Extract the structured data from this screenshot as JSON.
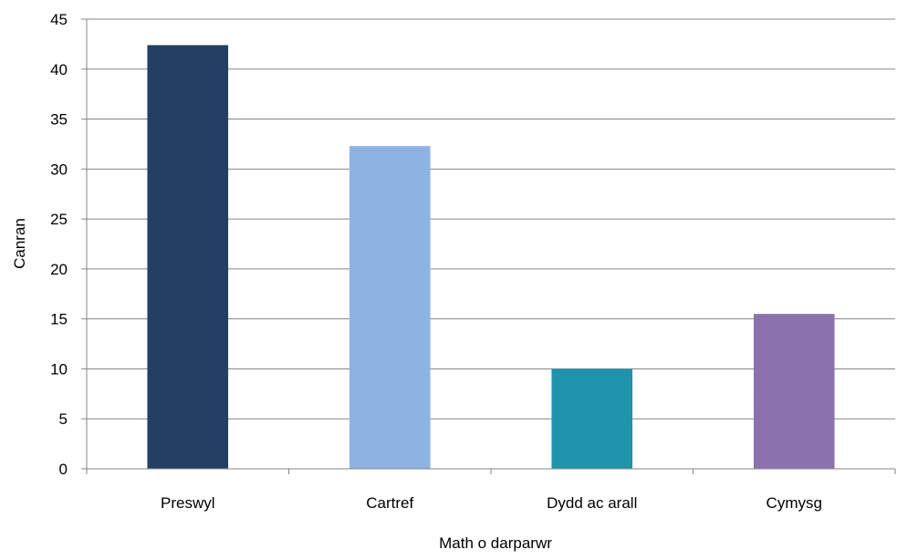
{
  "chart_data": {
    "type": "bar",
    "categories": [
      "Preswyl",
      "Cartref",
      "Dydd ac arall",
      "Cymysg"
    ],
    "values": [
      42.4,
      32.3,
      10.0,
      15.5
    ],
    "colors": [
      "#243f63",
      "#8eb3e3",
      "#1f93ab",
      "#8b72ae"
    ],
    "xlabel": "Math o darparwr",
    "ylabel": "Canran",
    "ylim": [
      0,
      45
    ],
    "yticks": [
      0,
      5,
      10,
      15,
      20,
      25,
      30,
      35,
      40,
      45
    ],
    "grid": true,
    "legend": "none"
  }
}
